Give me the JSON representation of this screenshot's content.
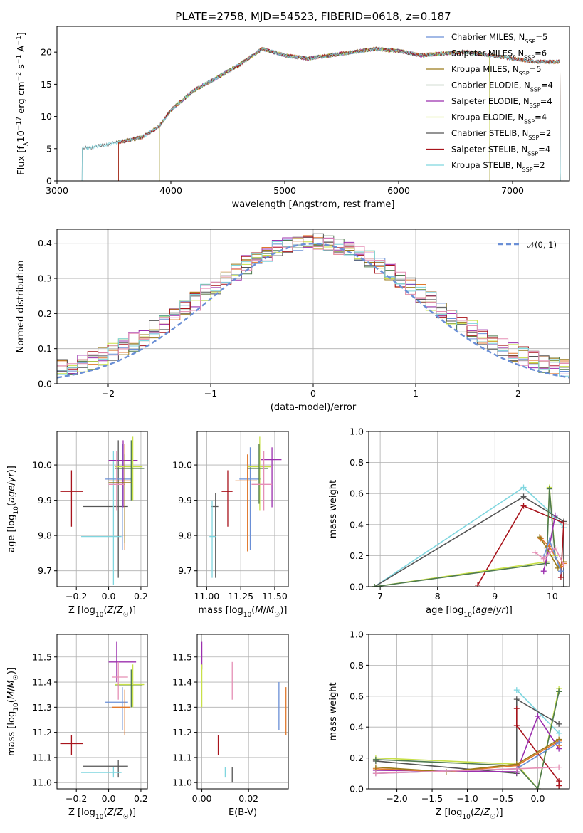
{
  "colors": {
    "Chabrier MILES": "#6a8fd6",
    "Salpeter MILES": "#e0782c",
    "Kroupa MILES": "#9a7a1a",
    "Chabrier ELODIE": "#4f7a4f",
    "Salpeter ELODIE": "#9b2fae",
    "Kroupa ELODIE": "#c8e048",
    "Chabrier STELIB": "#555555",
    "Salpeter STELIB": "#a8141c",
    "Kroupa STELIB": "#7fd6df",
    "Pink": "#e58fb5",
    "Normal": "#6a8fd6"
  },
  "chart_data": [
    {
      "id": "spectrum",
      "type": "line",
      "title": "PLATE=2758, MJD=54523, FIBERID=0618, z=0.187",
      "xlabel": "wavelength [Angstrom, rest frame]",
      "ylabel": "Flux [f_λ10^-17 erg cm^-2 s^-1 A^-1]",
      "xlim": [
        3000,
        7500
      ],
      "ylim": [
        0,
        24
      ],
      "xticks": [
        3000,
        4000,
        5000,
        6000,
        7000
      ],
      "yticks": [
        0,
        5,
        10,
        15,
        20
      ],
      "grid": false,
      "legend": "upper right",
      "continuum": {
        "x": [
          3220,
          3400,
          3600,
          3750,
          3900,
          4000,
          4200,
          4400,
          4600,
          4800,
          5000,
          5200,
          5400,
          5600,
          5800,
          6000,
          6200,
          6400,
          6600,
          6800,
          7000,
          7200
        ],
        "y": [
          5.0,
          5.5,
          6.2,
          6.8,
          8.5,
          11.0,
          14.0,
          16.0,
          18.0,
          20.5,
          19.5,
          19.0,
          19.5,
          20.0,
          20.5,
          20.2,
          19.5,
          19.8,
          20.0,
          19.5,
          19.0,
          18.5
        ]
      },
      "series": [
        {
          "name": "Chabrier MILES",
          "n_ssp": "5",
          "xmin": 3540,
          "xmax": 7420
        },
        {
          "name": "Salpeter MILES",
          "n_ssp": "6",
          "xmin": 3540,
          "xmax": 7420
        },
        {
          "name": "Kroupa MILES",
          "n_ssp": "5",
          "xmin": 3540,
          "xmax": 7420
        },
        {
          "name": "Chabrier ELODIE",
          "n_ssp": "4",
          "xmin": 3900,
          "xmax": 6800
        },
        {
          "name": "Salpeter ELODIE",
          "n_ssp": "4",
          "xmin": 3900,
          "xmax": 6800
        },
        {
          "name": "Kroupa ELODIE",
          "n_ssp": "4",
          "xmin": 3900,
          "xmax": 6800
        },
        {
          "name": "Chabrier STELIB",
          "n_ssp": "2",
          "xmin": 3220,
          "xmax": 7420
        },
        {
          "name": "Salpeter STELIB",
          "n_ssp": "4",
          "xmin": 3540,
          "xmax": 7420
        },
        {
          "name": "Kroupa STELIB",
          "n_ssp": "2",
          "xmin": 3220,
          "xmax": 7420
        }
      ]
    },
    {
      "id": "residuals",
      "type": "line",
      "xlabel": "(data-model)/error",
      "ylabel": "Normed distribution",
      "xlim": [
        -2.5,
        2.5
      ],
      "ylim": [
        0,
        0.44
      ],
      "xticks": [
        -2,
        -1,
        0,
        1,
        2
      ],
      "yticks": [
        0.0,
        0.1,
        0.2,
        0.3,
        0.4
      ],
      "grid": true,
      "legend": "upper right",
      "normal_label": "𝒩(0, 1)",
      "bin_width": 0.1
    },
    {
      "id": "age-vs-z",
      "type": "scatter",
      "xlabel": "Z [log10(Z/Z☉)]",
      "ylabel": "age  [log10(age/yr)]",
      "xlim": [
        -0.32,
        0.24
      ],
      "ylim": [
        9.655,
        10.095
      ],
      "xticks": [
        -0.2,
        0.0,
        0.2
      ],
      "yticks": [
        9.7,
        9.8,
        9.9,
        10.0
      ],
      "grid": true,
      "points": [
        {
          "s": "Salpeter STELIB",
          "x": -0.23,
          "xlo": -0.3,
          "xhi": -0.16,
          "y": 9.925,
          "ylo": 9.825,
          "yhi": 9.985
        },
        {
          "s": "Chabrier STELIB",
          "x": 0.06,
          "xlo": -0.16,
          "xhi": 0.12,
          "y": 9.882,
          "ylo": 9.68,
          "yhi": 10.07
        },
        {
          "s": "Kroupa STELIB",
          "x": 0.03,
          "xlo": -0.17,
          "xhi": 0.08,
          "y": 9.797,
          "ylo": 9.66,
          "yhi": 10.04
        },
        {
          "s": "Chabrier MILES",
          "x": 0.085,
          "xlo": -0.02,
          "xhi": 0.14,
          "y": 9.96,
          "ylo": 9.76,
          "yhi": 10.06
        },
        {
          "s": "Salpeter MILES",
          "x": 0.1,
          "xlo": 0.0,
          "xhi": 0.15,
          "y": 9.955,
          "ylo": 9.76,
          "yhi": 10.06
        },
        {
          "s": "Salpeter ELODIE",
          "x": 0.09,
          "xlo": 0.0,
          "xhi": 0.18,
          "y": 10.013,
          "ylo": 9.88,
          "yhi": 10.07
        },
        {
          "s": "Kroupa ELODIE",
          "x": 0.15,
          "xlo": 0.04,
          "xhi": 0.21,
          "y": 9.995,
          "ylo": 9.9,
          "yhi": 10.08
        },
        {
          "s": "Chabrier ELODIE",
          "x": 0.14,
          "xlo": 0.04,
          "xhi": 0.22,
          "y": 9.99,
          "ylo": 9.9,
          "yhi": 10.07
        },
        {
          "s": "Pink",
          "x": 0.05,
          "xlo": 0.0,
          "xhi": 0.1,
          "y": 9.945,
          "ylo": 9.87,
          "yhi": 10.04
        },
        {
          "s": "Kroupa MILES",
          "x": 0.1,
          "xlo": 0.0,
          "xhi": 0.14,
          "y": 9.95,
          "ylo": 9.78,
          "yhi": 10.03
        }
      ]
    },
    {
      "id": "age-vs-mass",
      "type": "scatter",
      "xlabel": "mass [log10(M/M☉)]",
      "ylabel": "",
      "xlim": [
        10.93,
        11.6
      ],
      "ylim": [
        9.655,
        10.095
      ],
      "xticks": [
        11.0,
        11.25,
        11.5
      ],
      "yticks": [
        9.7,
        9.8,
        9.9,
        10.0
      ],
      "grid": true,
      "points": [
        {
          "s": "Chabrier STELIB",
          "x": 11.065,
          "xlo": 11.03,
          "xhi": 11.085,
          "y": 9.882,
          "ylo": 9.68,
          "yhi": 9.92
        },
        {
          "s": "Kroupa STELIB",
          "x": 11.04,
          "xlo": 11.02,
          "xhi": 11.065,
          "y": 9.797,
          "ylo": 9.68,
          "yhi": 9.9
        },
        {
          "s": "Salpeter STELIB",
          "x": 11.155,
          "xlo": 11.11,
          "xhi": 11.19,
          "y": 9.925,
          "ylo": 9.825,
          "yhi": 9.985
        },
        {
          "s": "Chabrier MILES",
          "x": 11.32,
          "xlo": 11.24,
          "xhi": 11.4,
          "y": 9.96,
          "ylo": 9.76,
          "yhi": 10.05
        },
        {
          "s": "Salpeter MILES",
          "x": 11.3,
          "xlo": 11.21,
          "xhi": 11.37,
          "y": 9.955,
          "ylo": 9.755,
          "yhi": 10.03
        },
        {
          "s": "Salpeter ELODIE",
          "x": 11.48,
          "xlo": 11.4,
          "xhi": 11.55,
          "y": 10.015,
          "ylo": 9.88,
          "yhi": 10.05
        },
        {
          "s": "Kroupa ELODIE",
          "x": 11.39,
          "xlo": 11.3,
          "xhi": 11.47,
          "y": 9.995,
          "ylo": 9.87,
          "yhi": 10.08
        },
        {
          "s": "Chabrier ELODIE",
          "x": 11.385,
          "xlo": 11.3,
          "xhi": 11.45,
          "y": 9.99,
          "ylo": 9.89,
          "yhi": 10.06
        },
        {
          "s": "Pink",
          "x": 11.42,
          "xlo": 11.33,
          "xhi": 11.48,
          "y": 9.945,
          "ylo": 9.87,
          "yhi": 10.04
        }
      ]
    },
    {
      "id": "massweight-vs-age",
      "type": "line",
      "xlabel": "age  [log10(age/yr)]",
      "ylabel": "mass weight",
      "xlim": [
        6.8,
        10.3
      ],
      "ylim": [
        0,
        1
      ],
      "xticks": [
        7,
        8,
        9,
        10
      ],
      "yticks": [
        0.0,
        0.2,
        0.4,
        0.6,
        0.8,
        1.0
      ],
      "grid": true,
      "series": [
        {
          "name": "Kroupa STELIB",
          "x": [
            6.9,
            9.5,
            10.05,
            10.2
          ],
          "y": [
            0.0,
            0.64,
            0.45,
            0.38
          ]
        },
        {
          "name": "Chabrier STELIB",
          "x": [
            6.9,
            9.5,
            10.2,
            10.2
          ],
          "y": [
            0.0,
            0.58,
            0.42,
            0.0
          ]
        },
        {
          "name": "Salpeter STELIB",
          "x": [
            8.7,
            9.5,
            10.2,
            10.15
          ],
          "y": [
            0.01,
            0.52,
            0.41,
            0.06
          ]
        },
        {
          "name": "Kroupa ELODIE",
          "x": [
            6.9,
            9.9,
            9.95,
            10.05
          ],
          "y": [
            0.0,
            0.16,
            0.64,
            0.2
          ]
        },
        {
          "name": "Chabrier ELODIE",
          "x": [
            6.9,
            9.9,
            9.95,
            10.05
          ],
          "y": [
            0.0,
            0.15,
            0.63,
            0.19
          ]
        },
        {
          "name": "Salpeter ELODIE",
          "x": [
            9.85,
            9.95,
            10.05
          ],
          "y": [
            0.1,
            0.26,
            0.46
          ]
        },
        {
          "name": "Salpeter MILES",
          "x": [
            9.8,
            9.95,
            10.15,
            10.2
          ],
          "y": [
            0.31,
            0.26,
            0.13,
            0.15
          ]
        },
        {
          "name": "Kroupa MILES",
          "x": [
            9.78,
            9.9,
            10.1,
            10.2
          ],
          "y": [
            0.32,
            0.25,
            0.12,
            0.16
          ]
        },
        {
          "name": "Chabrier MILES",
          "x": [
            9.85,
            9.95,
            10.15
          ],
          "y": [
            0.19,
            0.3,
            0.1
          ]
        },
        {
          "name": "Pink",
          "x": [
            9.7,
            9.85,
            10.05,
            10.2
          ],
          "y": [
            0.22,
            0.18,
            0.25,
            0.14
          ]
        }
      ]
    },
    {
      "id": "mass-vs-z",
      "type": "scatter",
      "xlabel": "Z [log10(Z/Z☉)]",
      "ylabel": "mass [log10(M/M☉)]",
      "xlim": [
        -0.32,
        0.24
      ],
      "ylim": [
        10.975,
        11.59
      ],
      "xticks": [
        -0.2,
        0.0,
        0.2
      ],
      "yticks": [
        11.0,
        11.1,
        11.2,
        11.3,
        11.4,
        11.5
      ],
      "grid": true,
      "points": [
        {
          "s": "Salpeter STELIB",
          "x": -0.23,
          "xlo": -0.3,
          "xhi": -0.16,
          "y": 11.155,
          "ylo": 11.11,
          "yhi": 11.19
        },
        {
          "s": "Chabrier STELIB",
          "x": 0.06,
          "xlo": -0.16,
          "xhi": 0.12,
          "y": 11.065,
          "ylo": 11.02,
          "yhi": 11.09
        },
        {
          "s": "Kroupa STELIB",
          "x": 0.03,
          "xlo": -0.17,
          "xhi": 0.08,
          "y": 11.04,
          "ylo": 11.02,
          "yhi": 11.06
        },
        {
          "s": "Salpeter ELODIE",
          "x": 0.05,
          "xlo": 0.0,
          "xhi": 0.17,
          "y": 11.48,
          "ylo": 11.4,
          "yhi": 11.56
        },
        {
          "s": "Kroupa ELODIE",
          "x": 0.15,
          "xlo": 0.04,
          "xhi": 0.22,
          "y": 11.39,
          "ylo": 11.3,
          "yhi": 11.47
        },
        {
          "s": "Chabrier ELODIE",
          "x": 0.14,
          "xlo": 0.04,
          "xhi": 0.21,
          "y": 11.385,
          "ylo": 11.3,
          "yhi": 11.45
        },
        {
          "s": "Pink",
          "x": 0.06,
          "xlo": 0.02,
          "xhi": 0.12,
          "y": 11.42,
          "ylo": 11.33,
          "yhi": 11.48
        },
        {
          "s": "Chabrier MILES",
          "x": 0.085,
          "xlo": -0.02,
          "xhi": 0.12,
          "y": 11.32,
          "ylo": 11.21,
          "yhi": 11.38
        },
        {
          "s": "Salpeter MILES",
          "x": 0.1,
          "xlo": 0.02,
          "xhi": 0.13,
          "y": 11.3,
          "ylo": 11.19,
          "yhi": 11.37
        }
      ]
    },
    {
      "id": "mass-vs-ebv",
      "type": "scatter",
      "xlabel": "E(B-V)",
      "ylabel": "",
      "xlim": [
        -0.002,
        0.037
      ],
      "ylim": [
        10.975,
        11.59
      ],
      "xticks": [
        0.0,
        0.02
      ],
      "yticks": [
        11.0,
        11.1,
        11.2,
        11.3,
        11.4,
        11.5
      ],
      "grid": true,
      "points": [
        {
          "s": "Salpeter ELODIE",
          "x": 0.0,
          "ylo": 11.45,
          "yhi": 11.56
        },
        {
          "s": "Kroupa ELODIE",
          "x": 0.0,
          "ylo": 11.3,
          "yhi": 11.47
        },
        {
          "s": "Salpeter STELIB",
          "x": 0.007,
          "ylo": 11.11,
          "yhi": 11.19
        },
        {
          "s": "Kroupa STELIB",
          "x": 0.01,
          "ylo": 11.02,
          "yhi": 11.06
        },
        {
          "s": "Chabrier STELIB",
          "x": 0.013,
          "ylo": 11.0,
          "yhi": 11.06
        },
        {
          "s": "Pink",
          "x": 0.013,
          "ylo": 11.33,
          "yhi": 11.48
        },
        {
          "s": "Chabrier MILES",
          "x": 0.033,
          "ylo": 11.21,
          "yhi": 11.4
        },
        {
          "s": "Salpeter MILES",
          "x": 0.036,
          "ylo": 11.19,
          "yhi": 11.38
        }
      ]
    },
    {
      "id": "massweight-vs-z",
      "type": "line",
      "xlabel": "Z [log10(Z/Z☉)]",
      "ylabel": "mass weight",
      "xlim": [
        -2.4,
        0.45
      ],
      "ylim": [
        0,
        1
      ],
      "xticks": [
        -2.0,
        -1.5,
        -1.0,
        -0.5,
        0.0
      ],
      "yticks": [
        0.0,
        0.2,
        0.4,
        0.6,
        0.8,
        1.0
      ],
      "grid": true,
      "series": [
        {
          "name": "Kroupa STELIB",
          "x": [
            -0.3,
            0.3
          ],
          "y": [
            0.64,
            0.36
          ]
        },
        {
          "name": "Chabrier STELIB",
          "x": [
            -2.3,
            -0.3,
            -0.3,
            0.3
          ],
          "y": [
            0.18,
            0.1,
            0.58,
            0.42
          ]
        },
        {
          "name": "Salpeter STELIB",
          "x": [
            -0.3,
            -0.3,
            0.3,
            0.3
          ],
          "y": [
            0.52,
            0.41,
            0.05,
            0.02
          ]
        },
        {
          "name": "Kroupa ELODIE",
          "x": [
            -2.3,
            -0.3,
            0.0,
            0.3
          ],
          "y": [
            0.2,
            0.16,
            0.0,
            0.65
          ]
        },
        {
          "name": "Chabrier ELODIE",
          "x": [
            -2.3,
            -0.3,
            0.0,
            0.3
          ],
          "y": [
            0.19,
            0.15,
            0.0,
            0.63
          ]
        },
        {
          "name": "Salpeter ELODIE",
          "x": [
            -2.3,
            -0.3,
            0.0,
            0.3
          ],
          "y": [
            0.12,
            0.11,
            0.47,
            0.26
          ]
        },
        {
          "name": "Salpeter MILES",
          "x": [
            -2.3,
            -1.3,
            -0.3,
            0.3,
            0.3
          ],
          "y": [
            0.13,
            0.11,
            0.15,
            0.31,
            0.28
          ]
        },
        {
          "name": "Kroupa MILES",
          "x": [
            -2.3,
            -1.3,
            -0.3,
            0.3
          ],
          "y": [
            0.14,
            0.11,
            0.16,
            0.32
          ]
        },
        {
          "name": "Chabrier MILES",
          "x": [
            -2.3,
            -0.3,
            0.3
          ],
          "y": [
            0.1,
            0.13,
            0.3
          ]
        },
        {
          "name": "Pink",
          "x": [
            -2.3,
            -0.3,
            0.3
          ],
          "y": [
            0.1,
            0.13,
            0.14
          ]
        }
      ]
    }
  ]
}
